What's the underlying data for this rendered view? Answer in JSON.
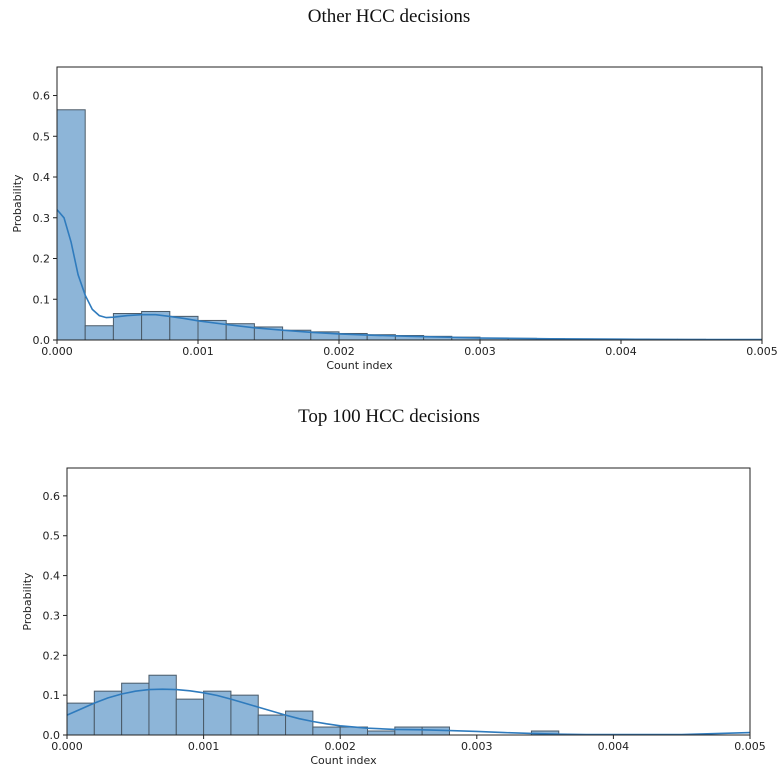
{
  "chart_data": [
    {
      "type": "bar",
      "title": "Other HCC decisions",
      "xlabel": "Count index",
      "ylabel": "Probability",
      "xlim": [
        0,
        0.005
      ],
      "ylim": [
        0,
        0.67
      ],
      "xticks": [
        "0.000",
        "0.001",
        "0.002",
        "0.003",
        "0.004",
        "0.005"
      ],
      "yticks": [
        "0.0",
        "0.1",
        "0.2",
        "0.3",
        "0.4",
        "0.5",
        "0.6"
      ],
      "bin_width": 0.0002,
      "bins_start": [
        0,
        0.0002,
        0.0004,
        0.0006,
        0.0008,
        0.001,
        0.0012,
        0.0014,
        0.0016,
        0.0018,
        0.002,
        0.0022,
        0.0024,
        0.0026,
        0.0028,
        0.003,
        0.0032,
        0.0034,
        0.0036,
        0.0038,
        0.004,
        0.0042,
        0.0044,
        0.0046,
        0.0048
      ],
      "values": [
        0.565,
        0.035,
        0.065,
        0.07,
        0.058,
        0.048,
        0.04,
        0.032,
        0.024,
        0.02,
        0.016,
        0.013,
        0.011,
        0.009,
        0.007,
        0.005,
        0.004,
        0.003,
        0.0025,
        0.002,
        0.002,
        0.0015,
        0.0015,
        0.001,
        0.001
      ],
      "kde": {
        "x": [
          0,
          5e-05,
          0.0001,
          0.00015,
          0.0002,
          0.00025,
          0.0003,
          0.00035,
          0.0004,
          0.0005,
          0.0006,
          0.0007,
          0.0008,
          0.0009,
          0.001,
          0.0012,
          0.0014,
          0.0016,
          0.0018,
          0.002,
          0.0022,
          0.0025,
          0.003,
          0.0035,
          0.004,
          0.0045,
          0.005
        ],
        "y": [
          0.32,
          0.3,
          0.24,
          0.16,
          0.11,
          0.075,
          0.06,
          0.055,
          0.056,
          0.06,
          0.062,
          0.062,
          0.058,
          0.053,
          0.047,
          0.038,
          0.03,
          0.024,
          0.019,
          0.015,
          0.012,
          0.009,
          0.005,
          0.003,
          0.002,
          0.001,
          0.001
        ]
      }
    },
    {
      "type": "bar",
      "title": "Top 100 HCC decisions",
      "xlabel": "Count index",
      "ylabel": "Probability",
      "xlim": [
        0,
        0.005
      ],
      "ylim": [
        0,
        0.67
      ],
      "xticks": [
        "0.000",
        "0.001",
        "0.002",
        "0.003",
        "0.004",
        "0.005"
      ],
      "yticks": [
        "0.0",
        "0.1",
        "0.2",
        "0.3",
        "0.4",
        "0.5",
        "0.6"
      ],
      "bin_width": 0.0002,
      "bins_start": [
        0,
        0.0002,
        0.0004,
        0.0006,
        0.0008,
        0.001,
        0.0012,
        0.0014,
        0.0016,
        0.0018,
        0.002,
        0.0022,
        0.0024,
        0.0026,
        0.0028,
        0.003,
        0.0032,
        0.0034
      ],
      "values": [
        0.08,
        0.11,
        0.13,
        0.15,
        0.09,
        0.11,
        0.1,
        0.05,
        0.06,
        0.02,
        0.02,
        0.01,
        0.02,
        0.02,
        0.0,
        0.0,
        0.0,
        0.01
      ],
      "kde": {
        "x": [
          0,
          0.0001,
          0.0002,
          0.0003,
          0.0004,
          0.0005,
          0.0006,
          0.0007,
          0.0008,
          0.0009,
          0.001,
          0.0011,
          0.0012,
          0.0013,
          0.0014,
          0.0015,
          0.0016,
          0.0017,
          0.0018,
          0.0019,
          0.002,
          0.0022,
          0.0024,
          0.0026,
          0.0028,
          0.003,
          0.0032,
          0.0034,
          0.0036,
          0.0038,
          0.004,
          0.0045,
          0.005
        ],
        "y": [
          0.05,
          0.065,
          0.08,
          0.093,
          0.103,
          0.11,
          0.114,
          0.115,
          0.114,
          0.111,
          0.106,
          0.099,
          0.09,
          0.08,
          0.07,
          0.06,
          0.05,
          0.041,
          0.034,
          0.028,
          0.023,
          0.017,
          0.014,
          0.013,
          0.011,
          0.009,
          0.006,
          0.004,
          0.002,
          0.001,
          0.001,
          0.001,
          0.006
        ]
      }
    }
  ],
  "colors": {
    "bar_fill": "#8db5d8",
    "bar_stroke": "#4a5a68",
    "kde_line": "#2f7bbd"
  }
}
